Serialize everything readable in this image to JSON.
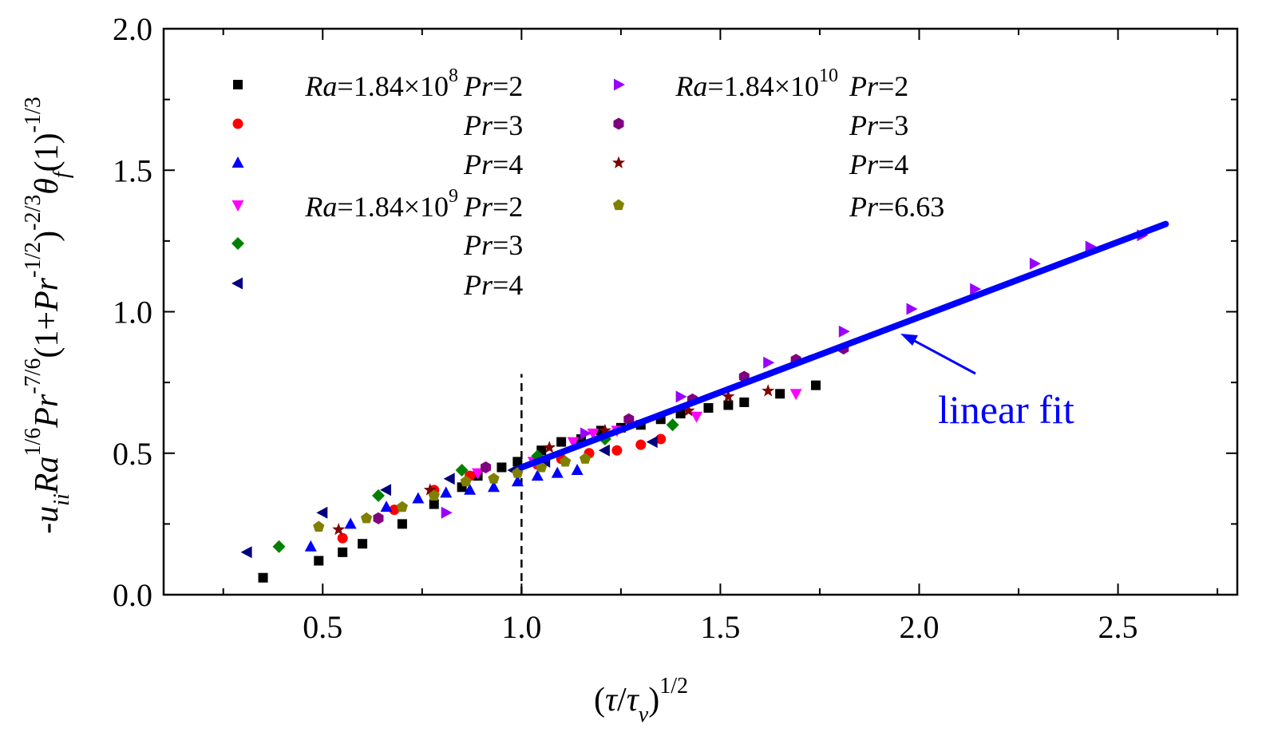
{
  "chart_data": {
    "type": "scatter",
    "xlabel": "(τ/τv)^1/2",
    "ylabel": "-uii Ra^1/6 Pr^-7/6 (1+Pr^-1/2)^-2/3 θf(1)^-1/3",
    "xlim": [
      0.1,
      2.8
    ],
    "ylim": [
      0.0,
      2.0
    ],
    "xticks": [
      0.5,
      1.0,
      1.5,
      2.0,
      2.5
    ],
    "xtick_labels": [
      "0.5",
      "1.0",
      "1.5",
      "2.0",
      "2.5"
    ],
    "yticks": [
      0.0,
      0.5,
      1.0,
      1.5,
      2.0
    ],
    "ytick_labels": [
      "0.0",
      "0.5",
      "1.0",
      "1.5",
      "2.0"
    ],
    "grid": false,
    "legend_position": "top-left",
    "series": [
      {
        "name": "Ra=1.84×10^8 Pr=2",
        "ra_label": "Ra=1.84×10",
        "ra_exp": "8",
        "pr_label": "Pr=2",
        "marker": "square",
        "color": "#000000",
        "x": [
          0.35,
          0.49,
          0.55,
          0.6,
          0.7,
          0.78,
          0.85,
          0.89,
          0.95,
          0.99,
          1.05,
          1.1,
          1.15,
          1.2,
          1.25,
          1.3,
          1.35,
          1.4,
          1.47,
          1.52,
          1.56,
          1.65,
          1.74
        ],
        "y": [
          0.06,
          0.12,
          0.15,
          0.18,
          0.25,
          0.32,
          0.38,
          0.42,
          0.45,
          0.47,
          0.51,
          0.54,
          0.55,
          0.58,
          0.59,
          0.6,
          0.62,
          0.64,
          0.66,
          0.67,
          0.68,
          0.71,
          0.74
        ]
      },
      {
        "name": "Ra=1.84×10^8 Pr=3",
        "ra_label": "",
        "ra_exp": "",
        "pr_label": "Pr=3",
        "marker": "circle",
        "color": "#ff0000",
        "x": [
          0.55,
          0.68,
          0.78,
          0.87,
          1.04,
          1.1,
          1.17,
          1.24,
          1.3,
          1.35
        ],
        "y": [
          0.2,
          0.3,
          0.37,
          0.42,
          0.46,
          0.48,
          0.5,
          0.51,
          0.53,
          0.55
        ]
      },
      {
        "name": "Ra=1.84×10^8 Pr=4",
        "ra_label": "",
        "ra_exp": "",
        "pr_label": "Pr=4",
        "marker": "triangle-up",
        "color": "#0000ff",
        "x": [
          0.47,
          0.57,
          0.66,
          0.74,
          0.81,
          0.87,
          0.93,
          0.99,
          1.04,
          1.09,
          1.14
        ],
        "y": [
          0.17,
          0.25,
          0.31,
          0.34,
          0.36,
          0.37,
          0.38,
          0.4,
          0.42,
          0.43,
          0.44
        ]
      },
      {
        "name": "Ra=1.84×10^9 Pr=2",
        "ra_label": "Ra=1.84×10",
        "ra_exp": "9",
        "pr_label": "Pr=2",
        "marker": "triangle-down",
        "color": "#ff00ff",
        "x": [
          0.89,
          1.03,
          1.13,
          1.18,
          1.24,
          1.44,
          1.69
        ],
        "y": [
          0.43,
          0.47,
          0.54,
          0.57,
          0.58,
          0.63,
          0.71
        ]
      },
      {
        "name": "Ra=1.84×10^9 Pr=3",
        "ra_label": "",
        "ra_exp": "",
        "pr_label": "Pr=3",
        "marker": "diamond",
        "color": "#008000",
        "x": [
          0.39,
          0.64,
          0.85,
          1.04,
          1.21,
          1.38
        ],
        "y": [
          0.17,
          0.35,
          0.44,
          0.49,
          0.55,
          0.6
        ]
      },
      {
        "name": "Ra=1.84×10^9 Pr=4",
        "ra_label": "",
        "ra_exp": "",
        "pr_label": "Pr=4",
        "marker": "triangle-left",
        "color": "#000080",
        "x": [
          0.31,
          0.5,
          0.66,
          0.82,
          0.98,
          1.06,
          1.21,
          1.33
        ],
        "y": [
          0.15,
          0.29,
          0.37,
          0.41,
          0.44,
          0.47,
          0.51,
          0.54
        ]
      },
      {
        "name": "Ra=1.84×10^10 Pr=2",
        "ra_label": "Ra=1.84×10",
        "ra_exp": "10",
        "pr_label": "Pr=2",
        "marker": "triangle-right",
        "color": "#9900ff",
        "x": [
          0.81,
          1.16,
          1.4,
          1.62,
          1.81,
          1.98,
          2.14,
          2.29,
          2.43,
          2.56
        ],
        "y": [
          0.29,
          0.57,
          0.7,
          0.82,
          0.93,
          1.01,
          1.08,
          1.17,
          1.23,
          1.27
        ]
      },
      {
        "name": "Ra=1.84×10^10 Pr=3",
        "ra_label": "",
        "ra_exp": "",
        "pr_label": "Pr=3",
        "marker": "hexagon",
        "color": "#800080",
        "x": [
          0.64,
          0.91,
          1.27,
          1.43,
          1.56,
          1.69,
          1.81
        ],
        "y": [
          0.27,
          0.45,
          0.62,
          0.69,
          0.77,
          0.83,
          0.87
        ]
      },
      {
        "name": "Ra=1.84×10^10 Pr=4",
        "ra_label": "",
        "ra_exp": "",
        "pr_label": "Pr=4",
        "marker": "star",
        "color": "#800000",
        "x": [
          0.54,
          0.77,
          1.07,
          1.21,
          1.42,
          1.52,
          1.62
        ],
        "y": [
          0.23,
          0.37,
          0.52,
          0.58,
          0.65,
          0.7,
          0.72
        ]
      },
      {
        "name": "Ra=1.84×10^10 Pr=6.63",
        "ra_label": "",
        "ra_exp": "",
        "pr_label": "Pr=6.63",
        "marker": "pentagon",
        "color": "#808000",
        "x": [
          0.49,
          0.61,
          0.7,
          0.78,
          0.86,
          0.93,
          0.99,
          1.05,
          1.11,
          1.16
        ],
        "y": [
          0.24,
          0.27,
          0.31,
          0.35,
          0.4,
          0.41,
          0.43,
          0.45,
          0.47,
          0.48
        ]
      }
    ],
    "fit_line": {
      "label": "linear fit",
      "color": "#0000ff",
      "x": [
        1.0,
        2.62
      ],
      "y": [
        0.45,
        1.31
      ]
    },
    "vertical_reference": {
      "x": 1.0,
      "y_top": 0.78
    }
  }
}
